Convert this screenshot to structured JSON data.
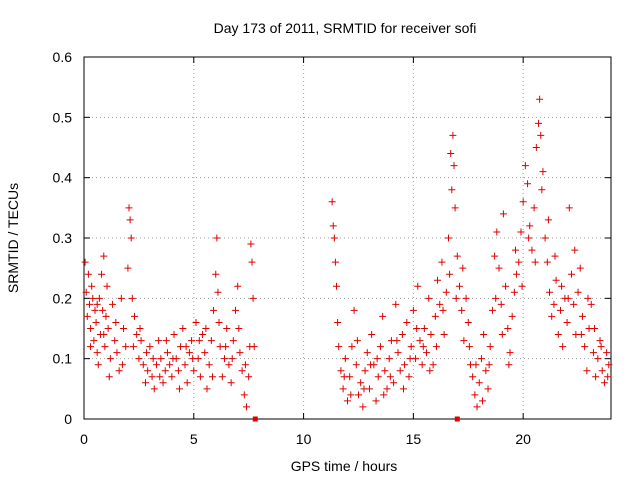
{
  "chart_data": {
    "type": "scatter",
    "title": "Day 173 of 2011, SRMTID for receiver sofi",
    "xlabel": "GPS time / hours",
    "ylabel": "SRMTID / TECUs",
    "xlim": [
      0,
      24
    ],
    "ylim": [
      0,
      0.6
    ],
    "x_ticks": [
      0,
      5,
      10,
      15,
      20
    ],
    "y_ticks": [
      0,
      0.1,
      0.2,
      0.3,
      0.4,
      0.5,
      0.6
    ],
    "x_tick_labels": [
      "0",
      "5",
      "10",
      "15",
      "20"
    ],
    "y_tick_labels": [
      "0",
      "0.1",
      "0.2",
      "0.3",
      "0.4",
      "0.5",
      "0.6"
    ],
    "grid": true,
    "series": [
      {
        "name": "SRMTID",
        "color": "#e00000",
        "marker": "plus",
        "points": [
          [
            0.05,
            0.26
          ],
          [
            0.1,
            0.21
          ],
          [
            0.15,
            0.17
          ],
          [
            0.2,
            0.24
          ],
          [
            0.25,
            0.19
          ],
          [
            0.3,
            0.15
          ],
          [
            0.35,
            0.22
          ],
          [
            0.4,
            0.2
          ],
          [
            0.45,
            0.13
          ],
          [
            0.5,
            0.18
          ],
          [
            0.55,
            0.16
          ],
          [
            0.6,
            0.11
          ],
          [
            0.65,
            0.09
          ],
          [
            0.7,
            0.2
          ],
          [
            0.75,
            0.14
          ],
          [
            0.8,
            0.24
          ],
          [
            0.85,
            0.18
          ],
          [
            0.9,
            0.27
          ],
          [
            0.95,
            0.12
          ],
          [
            1.0,
            0.17
          ],
          [
            1.05,
            0.22
          ],
          [
            1.1,
            0.15
          ],
          [
            1.2,
            0.1
          ],
          [
            1.3,
            0.19
          ],
          [
            1.4,
            0.13
          ],
          [
            1.5,
            0.11
          ],
          [
            1.6,
            0.08
          ],
          [
            1.7,
            0.2
          ],
          [
            1.8,
            0.15
          ],
          [
            1.9,
            0.12
          ],
          [
            2.0,
            0.25
          ],
          [
            2.05,
            0.35
          ],
          [
            2.1,
            0.33
          ],
          [
            2.15,
            0.3
          ],
          [
            2.2,
            0.2
          ],
          [
            2.3,
            0.17
          ],
          [
            2.4,
            0.14
          ],
          [
            2.5,
            0.1
          ],
          [
            2.6,
            0.13
          ],
          [
            2.7,
            0.09
          ],
          [
            2.8,
            0.06
          ],
          [
            2.9,
            0.08
          ],
          [
            3.0,
            0.12
          ],
          [
            3.1,
            0.07
          ],
          [
            3.2,
            0.05
          ],
          [
            3.3,
            0.09
          ],
          [
            3.4,
            0.13
          ],
          [
            3.5,
            0.1
          ],
          [
            3.6,
            0.06
          ],
          [
            3.7,
            0.08
          ],
          [
            3.8,
            0.11
          ],
          [
            3.9,
            0.09
          ],
          [
            4.0,
            0.07
          ],
          [
            4.1,
            0.14
          ],
          [
            4.2,
            0.1
          ],
          [
            4.3,
            0.08
          ],
          [
            4.4,
            0.12
          ],
          [
            4.5,
            0.15
          ],
          [
            4.6,
            0.09
          ],
          [
            4.7,
            0.06
          ],
          [
            4.8,
            0.11
          ],
          [
            4.9,
            0.13
          ],
          [
            5.0,
            0.08
          ],
          [
            5.1,
            0.16
          ],
          [
            5.2,
            0.1
          ],
          [
            5.3,
            0.07
          ],
          [
            5.4,
            0.14
          ],
          [
            5.5,
            0.11
          ],
          [
            5.6,
            0.05
          ],
          [
            5.7,
            0.09
          ],
          [
            5.8,
            0.13
          ],
          [
            5.9,
            0.18
          ],
          [
            6.0,
            0.24
          ],
          [
            6.05,
            0.3
          ],
          [
            6.1,
            0.21
          ],
          [
            6.2,
            0.12
          ],
          [
            6.3,
            0.07
          ],
          [
            6.4,
            0.1
          ],
          [
            6.5,
            0.15
          ],
          [
            6.6,
            0.09
          ],
          [
            6.7,
            0.06
          ],
          [
            6.8,
            0.13
          ],
          [
            6.9,
            0.18
          ],
          [
            7.0,
            0.22
          ],
          [
            7.1,
            0.11
          ],
          [
            7.2,
            0.08
          ],
          [
            7.3,
            0.04
          ],
          [
            7.4,
            0.02
          ],
          [
            7.5,
            0.07
          ],
          [
            7.6,
            0.29
          ],
          [
            7.65,
            0.26
          ],
          [
            7.7,
            0.2
          ],
          [
            7.75,
            0.12
          ],
          [
            7.8,
            0.0
          ],
          [
            11.3,
            0.36
          ],
          [
            11.35,
            0.32
          ],
          [
            11.4,
            0.3
          ],
          [
            11.45,
            0.26
          ],
          [
            11.5,
            0.22
          ],
          [
            11.6,
            0.12
          ],
          [
            11.7,
            0.08
          ],
          [
            11.8,
            0.05
          ],
          [
            11.9,
            0.1
          ],
          [
            12.0,
            0.03
          ],
          [
            12.1,
            0.07
          ],
          [
            12.2,
            0.12
          ],
          [
            12.3,
            0.18
          ],
          [
            12.4,
            0.09
          ],
          [
            12.5,
            0.04
          ],
          [
            12.6,
            0.06
          ],
          [
            12.7,
            0.02
          ],
          [
            12.8,
            0.08
          ],
          [
            12.9,
            0.11
          ],
          [
            13.0,
            0.05
          ],
          [
            13.1,
            0.14
          ],
          [
            13.2,
            0.09
          ],
          [
            13.3,
            0.03
          ],
          [
            13.4,
            0.07
          ],
          [
            13.5,
            0.12
          ],
          [
            13.6,
            0.17
          ],
          [
            13.7,
            0.08
          ],
          [
            13.8,
            0.05
          ],
          [
            13.9,
            0.1
          ],
          [
            14.0,
            0.13
          ],
          [
            14.1,
            0.06
          ],
          [
            14.2,
            0.19
          ],
          [
            14.3,
            0.11
          ],
          [
            14.4,
            0.08
          ],
          [
            14.5,
            0.14
          ],
          [
            14.6,
            0.09
          ],
          [
            14.7,
            0.16
          ],
          [
            14.8,
            0.07
          ],
          [
            14.9,
            0.12
          ],
          [
            15.0,
            0.18
          ],
          [
            15.1,
            0.1
          ],
          [
            15.2,
            0.22
          ],
          [
            15.3,
            0.13
          ],
          [
            15.4,
            0.09
          ],
          [
            15.5,
            0.15
          ],
          [
            15.6,
            0.11
          ],
          [
            15.7,
            0.2
          ],
          [
            15.8,
            0.14
          ],
          [
            15.9,
            0.09
          ],
          [
            16.0,
            0.17
          ],
          [
            16.1,
            0.23
          ],
          [
            16.2,
            0.19
          ],
          [
            16.3,
            0.26
          ],
          [
            16.4,
            0.14
          ],
          [
            16.5,
            0.21
          ],
          [
            16.6,
            0.3
          ],
          [
            16.7,
            0.44
          ],
          [
            16.75,
            0.38
          ],
          [
            16.8,
            0.47
          ],
          [
            16.85,
            0.42
          ],
          [
            16.9,
            0.35
          ],
          [
            17.0,
            0.27
          ],
          [
            17.1,
            0.22
          ],
          [
            17.2,
            0.18
          ],
          [
            17.3,
            0.13
          ],
          [
            17.4,
            0.2
          ],
          [
            17.5,
            0.16
          ],
          [
            17.6,
            0.09
          ],
          [
            17.7,
            0.07
          ],
          [
            17.8,
            0.04
          ],
          [
            17.9,
            0.02
          ],
          [
            18.0,
            0.06
          ],
          [
            18.1,
            0.1
          ],
          [
            18.2,
            0.14
          ],
          [
            18.3,
            0.08
          ],
          [
            18.4,
            0.05
          ],
          [
            18.5,
            0.12
          ],
          [
            18.6,
            0.18
          ],
          [
            18.7,
            0.27
          ],
          [
            18.8,
            0.31
          ],
          [
            18.9,
            0.25
          ],
          [
            19.0,
            0.19
          ],
          [
            19.1,
            0.34
          ],
          [
            19.2,
            0.22
          ],
          [
            19.3,
            0.15
          ],
          [
            19.4,
            0.11
          ],
          [
            19.5,
            0.17
          ],
          [
            19.6,
            0.21
          ],
          [
            19.7,
            0.24
          ],
          [
            19.8,
            0.26
          ],
          [
            19.9,
            0.31
          ],
          [
            20.0,
            0.36
          ],
          [
            20.1,
            0.42
          ],
          [
            20.2,
            0.39
          ],
          [
            20.3,
            0.32
          ],
          [
            20.4,
            0.28
          ],
          [
            20.5,
            0.35
          ],
          [
            20.6,
            0.45
          ],
          [
            20.7,
            0.49
          ],
          [
            20.75,
            0.53
          ],
          [
            20.8,
            0.47
          ],
          [
            20.9,
            0.41
          ],
          [
            21.0,
            0.3
          ],
          [
            21.1,
            0.26
          ],
          [
            21.2,
            0.21
          ],
          [
            21.3,
            0.17
          ],
          [
            21.4,
            0.19
          ],
          [
            21.5,
            0.23
          ],
          [
            21.6,
            0.14
          ],
          [
            21.7,
            0.18
          ],
          [
            21.8,
            0.12
          ],
          [
            21.9,
            0.2
          ],
          [
            22.0,
            0.16
          ],
          [
            22.1,
            0.35
          ],
          [
            22.2,
            0.24
          ],
          [
            22.3,
            0.19
          ],
          [
            22.4,
            0.14
          ],
          [
            22.5,
            0.21
          ],
          [
            22.6,
            0.25
          ],
          [
            22.7,
            0.17
          ],
          [
            22.8,
            0.12
          ],
          [
            22.9,
            0.08
          ],
          [
            23.0,
            0.15
          ],
          [
            23.1,
            0.19
          ],
          [
            23.2,
            0.11
          ],
          [
            23.3,
            0.07
          ],
          [
            23.4,
            0.1
          ],
          [
            23.5,
            0.13
          ],
          [
            23.6,
            0.08
          ],
          [
            23.7,
            0.06
          ],
          [
            23.8,
            0.11
          ],
          [
            23.9,
            0.09
          ],
          [
            0.3,
            0.12
          ],
          [
            0.6,
            0.19
          ],
          [
            0.9,
            0.14
          ],
          [
            1.15,
            0.07
          ],
          [
            1.45,
            0.16
          ],
          [
            1.75,
            0.09
          ],
          [
            2.25,
            0.12
          ],
          [
            2.55,
            0.15
          ],
          [
            2.85,
            0.11
          ],
          [
            3.15,
            0.1
          ],
          [
            3.45,
            0.07
          ],
          [
            3.75,
            0.13
          ],
          [
            4.05,
            0.1
          ],
          [
            4.35,
            0.05
          ],
          [
            4.65,
            0.12
          ],
          [
            4.95,
            0.1
          ],
          [
            5.25,
            0.13
          ],
          [
            5.55,
            0.15
          ],
          [
            5.85,
            0.07
          ],
          [
            6.15,
            0.16
          ],
          [
            6.45,
            0.12
          ],
          [
            6.75,
            0.1
          ],
          [
            7.05,
            0.15
          ],
          [
            7.35,
            0.09
          ],
          [
            7.55,
            0.12
          ],
          [
            11.55,
            0.16
          ],
          [
            11.85,
            0.07
          ],
          [
            12.15,
            0.04
          ],
          [
            12.45,
            0.13
          ],
          [
            12.75,
            0.05
          ],
          [
            13.05,
            0.09
          ],
          [
            13.35,
            0.1
          ],
          [
            13.65,
            0.04
          ],
          [
            13.95,
            0.07
          ],
          [
            14.25,
            0.13
          ],
          [
            14.55,
            0.05
          ],
          [
            14.85,
            0.1
          ],
          [
            15.15,
            0.15
          ],
          [
            15.45,
            0.12
          ],
          [
            15.75,
            0.08
          ],
          [
            16.05,
            0.12
          ],
          [
            16.35,
            0.18
          ],
          [
            16.65,
            0.24
          ],
          [
            16.95,
            0.2
          ],
          [
            17.25,
            0.25
          ],
          [
            17.55,
            0.12
          ],
          [
            17.85,
            0.09
          ],
          [
            18.15,
            0.03
          ],
          [
            18.45,
            0.09
          ],
          [
            18.75,
            0.2
          ],
          [
            19.05,
            0.14
          ],
          [
            19.35,
            0.09
          ],
          [
            19.65,
            0.28
          ],
          [
            19.95,
            0.22
          ],
          [
            20.25,
            0.3
          ],
          [
            20.55,
            0.26
          ],
          [
            20.85,
            0.38
          ],
          [
            21.15,
            0.33
          ],
          [
            21.45,
            0.27
          ],
          [
            21.75,
            0.22
          ],
          [
            22.05,
            0.2
          ],
          [
            22.35,
            0.28
          ],
          [
            22.65,
            0.14
          ],
          [
            22.95,
            0.2
          ],
          [
            23.25,
            0.15
          ],
          [
            23.55,
            0.12
          ],
          [
            23.85,
            0.07
          ],
          [
            17.0,
            0.0
          ]
        ]
      }
    ]
  }
}
